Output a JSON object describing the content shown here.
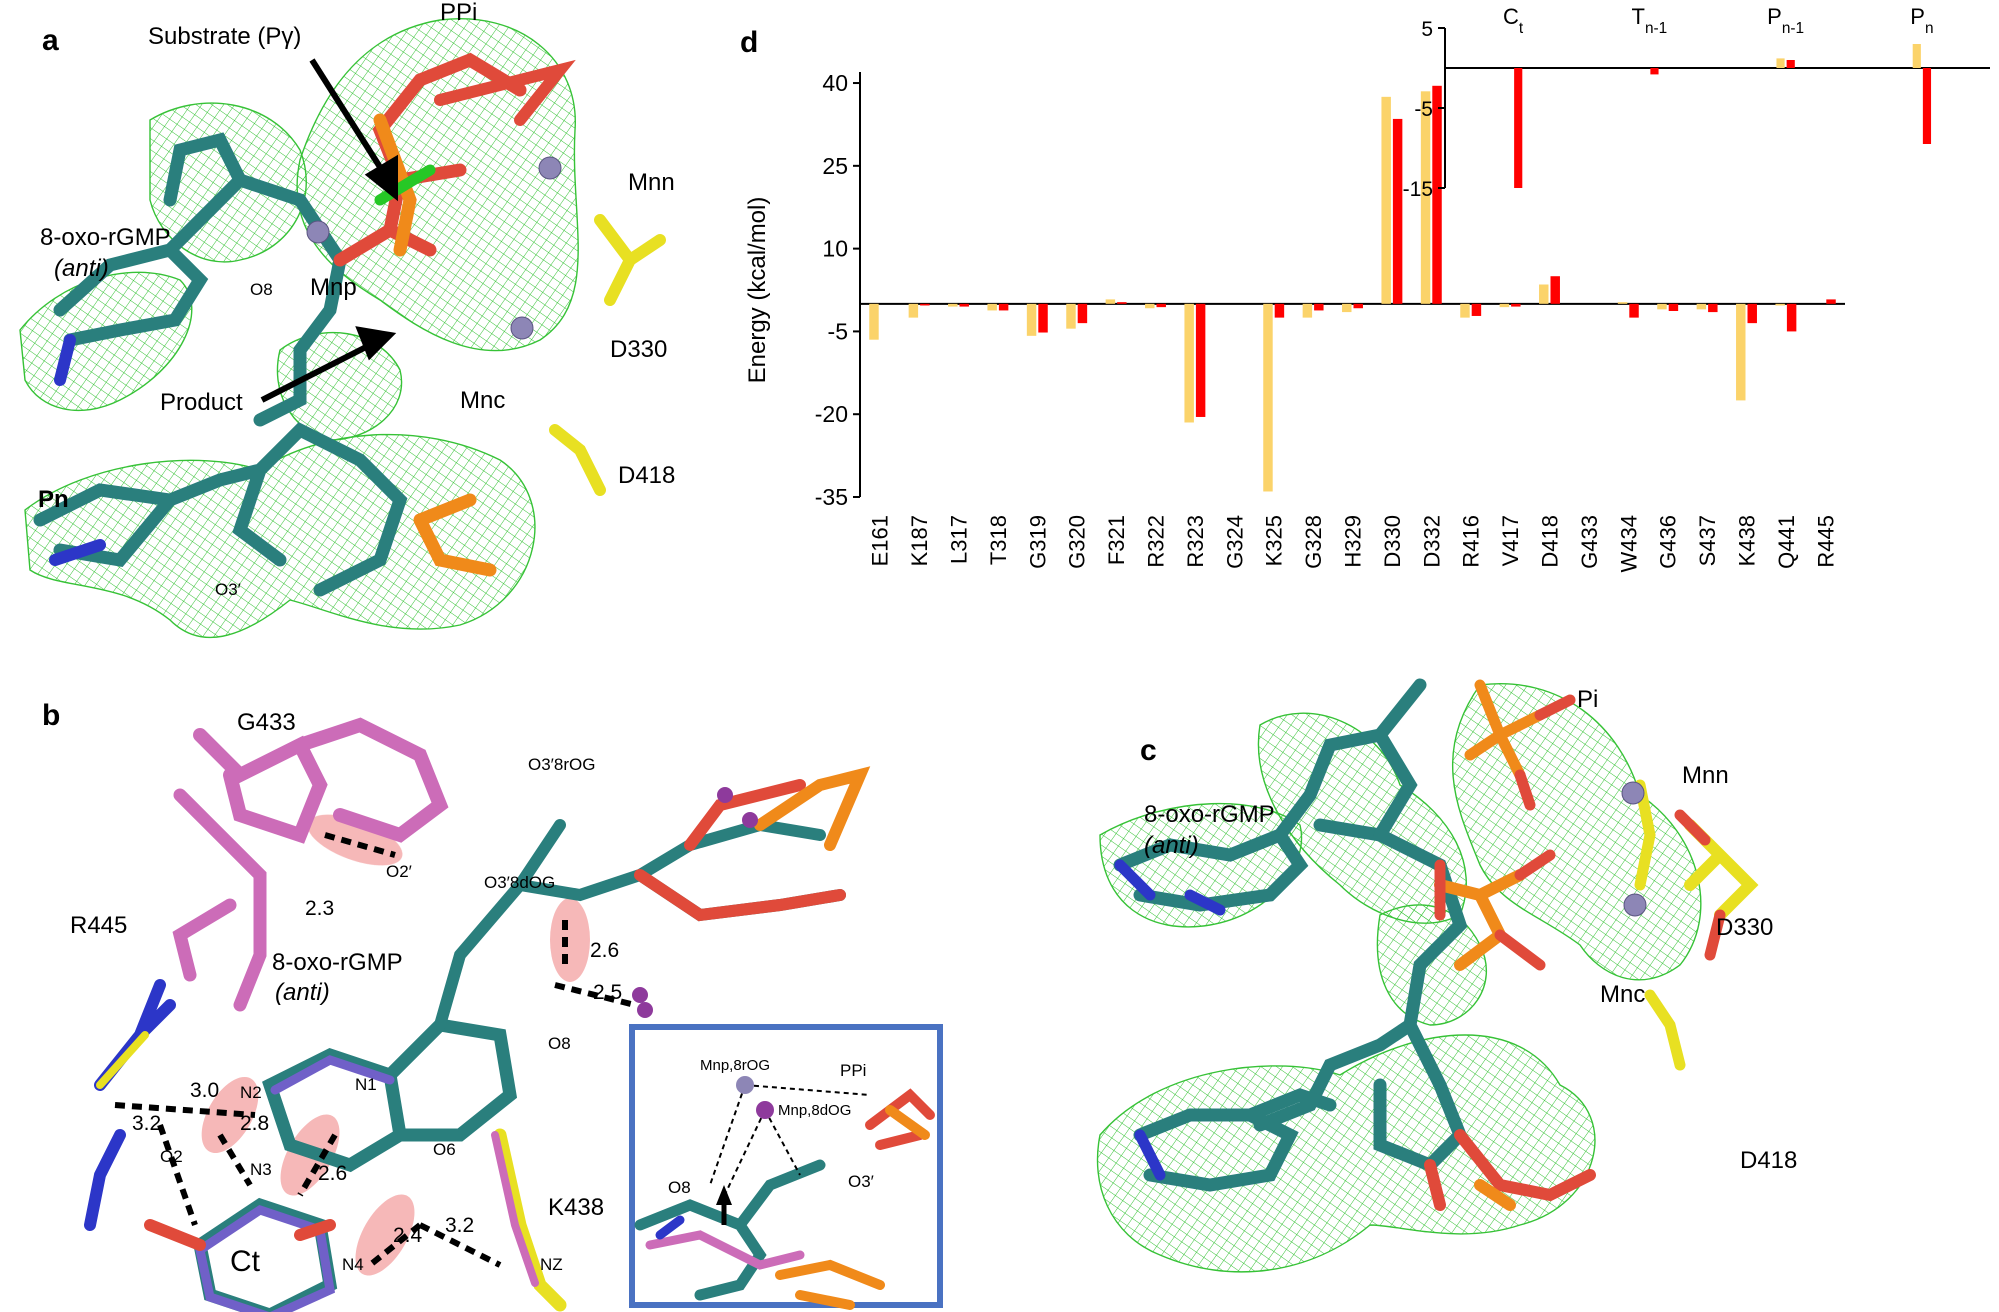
{
  "panels": {
    "a": {
      "letter": "a",
      "labels": {
        "substrate": "Substrate (Pγ)",
        "ppi": "PPi",
        "oxo": "8-oxo-rGMP",
        "anti": "(anti)",
        "o8": "O8",
        "mnp": "Mnp",
        "mnn": "Mnn",
        "product": "Product",
        "mnc": "Mnc",
        "d330": "D330",
        "d418": "D418",
        "pn": "Pn",
        "o3p": "O3′"
      }
    },
    "b": {
      "letter": "b",
      "labels": {
        "g433": "G433",
        "o3_8rog": "O3′8rOG",
        "o2p": "O2′",
        "o3_8dog": "O3′8dOG",
        "r445": "R445",
        "oxo": "8-oxo-rGMP",
        "anti": "(anti)",
        "n2": "N2",
        "n1": "N1",
        "o8": "O8",
        "o2": "O2",
        "n3": "N3",
        "o6": "O6",
        "k438": "K438",
        "ct": "Ct",
        "n4": "N4",
        "nz": "NZ"
      },
      "distances": [
        "2.3",
        "2.6",
        "2.5",
        "3.0",
        "3.2",
        "2.8",
        "2.6",
        "2.4",
        "3.2"
      ],
      "inset": {
        "mn_8rog": "Mnp,8rOG",
        "mn_8dog": "Mnp,8dOG",
        "ppi": "PPi",
        "o8": "O8",
        "o3p": "O3′"
      }
    },
    "c": {
      "letter": "c",
      "labels": {
        "pi": "Pi",
        "mnn": "Mnn",
        "oxo": "8-oxo-rGMP",
        "anti": "(anti)",
        "d330": "D330",
        "mnc": "Mnc",
        "d418": "D418"
      }
    },
    "d": {
      "letter": "d"
    }
  },
  "colors": {
    "series_light": "#fbd36a",
    "series_dark": "#ff0000",
    "mesh": "#36c236",
    "carbon": "#2a7f7d",
    "oxygen": "#e04a3a",
    "nitrogen": "#2c36c8",
    "phosphorus": "#f08a1a",
    "carbon_alt": "#cc6cb8",
    "asp": "#e8e022",
    "metal": "#8d86b6",
    "inset_border": "#4a72c2"
  },
  "chart_data": [
    {
      "type": "bar",
      "ylabel": "Energy (kcal/mol)",
      "ylim": [
        -35,
        42
      ],
      "yticks": [
        -35,
        -20,
        -5,
        10,
        25,
        40
      ],
      "categories": [
        "E161",
        "K187",
        "L317",
        "T318",
        "G319",
        "G320",
        "F321",
        "R322",
        "R323",
        "G324",
        "K325",
        "G328",
        "H329",
        "D330",
        "D332",
        "R416",
        "V417",
        "D418",
        "G433",
        "W434",
        "G436",
        "S437",
        "K438",
        "Q441",
        "R445"
      ],
      "series": [
        {
          "color": "light",
          "values": [
            -6.5,
            -2.5,
            -0.5,
            -1.2,
            -5.8,
            -4.5,
            0.8,
            -0.8,
            -21.5,
            0,
            -34,
            -2.5,
            -1.5,
            37.5,
            38.5,
            -2.5,
            -0.6,
            3.5,
            0,
            0.3,
            -1,
            -1,
            -17.5,
            -0.3,
            0
          ]
        },
        {
          "color": "dark",
          "values": [
            0,
            -0.3,
            -0.5,
            -1.2,
            -5.2,
            -3.5,
            0.3,
            -0.6,
            -20.5,
            0,
            -2.5,
            -1.2,
            -0.8,
            33.5,
            39.5,
            -2.2,
            -0.5,
            5,
            0,
            -2.5,
            -1.3,
            -1.5,
            -3.5,
            -5,
            0.8
          ]
        }
      ]
    },
    {
      "type": "bar",
      "ylim": [
        -15,
        5
      ],
      "yticks": [
        -15,
        -5,
        5
      ],
      "categories": [
        "Ct",
        "Tn-1",
        "Pn-1",
        "Pn"
      ],
      "series": [
        {
          "color": "light",
          "values": [
            0,
            0,
            1.2,
            3.0
          ]
        },
        {
          "color": "dark",
          "values": [
            -15,
            -0.8,
            1.0,
            -9.5
          ]
        }
      ]
    }
  ]
}
